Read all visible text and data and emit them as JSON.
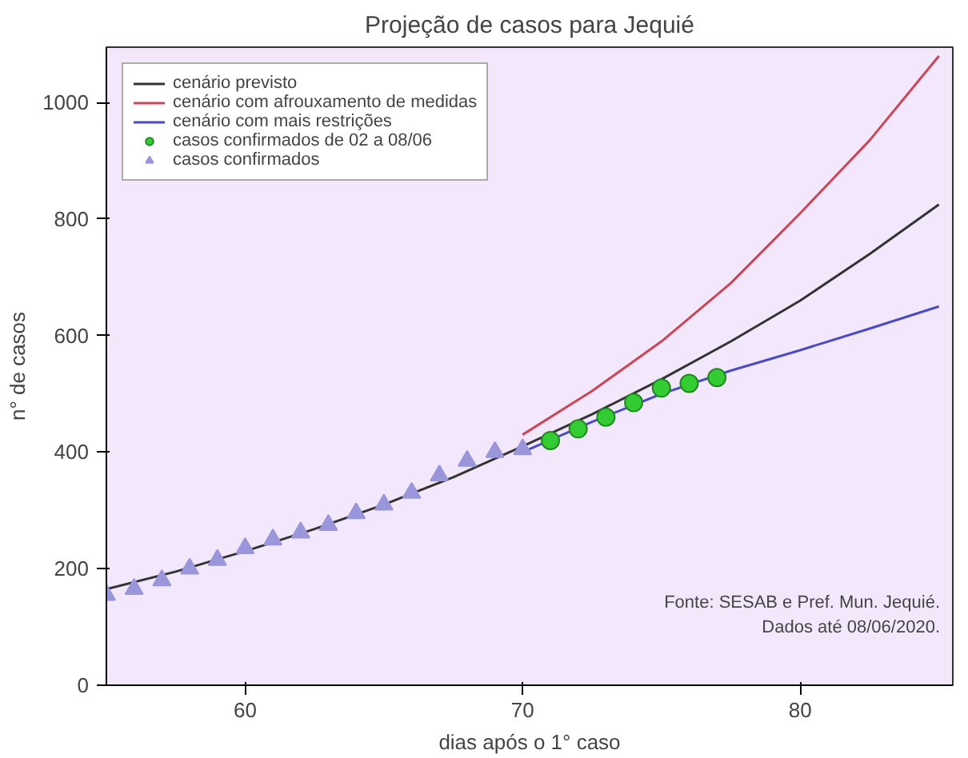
{
  "chart_data": {
    "type": "line",
    "title": "Projeção de casos para Jequié",
    "xlabel": "dias após o 1° caso",
    "ylabel": "n° de casos",
    "xlim": [
      55,
      85.5
    ],
    "ylim": [
      0,
      1095
    ],
    "xticks": [
      60,
      70,
      80
    ],
    "yticks": [
      0,
      200,
      400,
      600,
      800,
      1000
    ],
    "grid": false,
    "legend": "top left",
    "annotations": [
      "Fonte: SESAB e Pref. Mun. Jequié.\nDados até 08/06/2020."
    ],
    "series": [
      {
        "name": "cenário previsto",
        "color": "#333333",
        "x": [
          55,
          57.5,
          60,
          62.5,
          65,
          67.5,
          70,
          72.5,
          75,
          77.5,
          80,
          82.5,
          85
        ],
        "values": [
          165,
          195,
          230,
          268,
          310,
          357,
          410,
          465,
          525,
          590,
          660,
          740,
          825
        ]
      },
      {
        "name": "cenário com afrouxamento de medidas",
        "color": "#cc4455",
        "x": [
          70,
          72.5,
          75,
          77.5,
          80,
          82.5,
          85
        ],
        "values": [
          430,
          505,
          590,
          690,
          810,
          935,
          1080
        ]
      },
      {
        "name": "cenário com mais restrições",
        "color": "#4a4ac8",
        "x": [
          70,
          72.5,
          75,
          77.5,
          80,
          82.5,
          85
        ],
        "values": [
          400,
          452,
          500,
          540,
          575,
          612,
          650
        ]
      },
      {
        "name": "casos confirmados de 02 a 08/06",
        "type": "scatter",
        "marker": "circle",
        "color": "#33cc33",
        "x": [
          71,
          72,
          73,
          74,
          75,
          76,
          77
        ],
        "values": [
          420,
          440,
          460,
          485,
          510,
          518,
          528
        ]
      },
      {
        "name": "casos confirmados",
        "type": "scatter",
        "marker": "triangle",
        "color": "#9a96dc",
        "x": [
          55,
          56,
          57,
          58,
          59,
          60,
          61,
          62,
          63,
          64,
          65,
          66,
          67,
          68,
          69,
          70
        ],
        "values": [
          155,
          165,
          180,
          200,
          215,
          235,
          250,
          262,
          275,
          295,
          310,
          330,
          360,
          385,
          400,
          405
        ]
      }
    ]
  }
}
